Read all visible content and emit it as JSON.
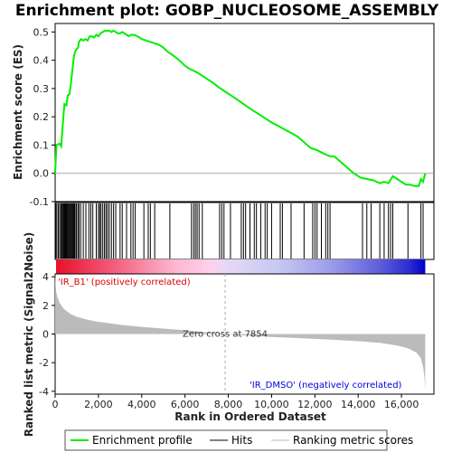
{
  "chart_data": {
    "type": "line",
    "title": "Enrichment plot: GOBP_NUCLEOSOME_ASSEMBLY",
    "xlabel": "Rank in Ordered Dataset",
    "ylabel_top": "Enrichment score (ES)",
    "ylabel_bottom": "Ranked list metric (Signal2Noise)",
    "x_range": [
      0,
      17500
    ],
    "es_ylim": [
      -0.1,
      0.53
    ],
    "metric_ylim": [
      -4.2,
      4.2
    ],
    "x_ticks": [
      "0",
      "2,000",
      "4,000",
      "6,000",
      "8,000",
      "10,000",
      "12,000",
      "14,000",
      "16,000"
    ],
    "x_tick_values": [
      0,
      2000,
      4000,
      6000,
      8000,
      10000,
      12000,
      14000,
      16000
    ],
    "es_ticks": [
      "-0.1",
      "0.0",
      "0.1",
      "0.2",
      "0.3",
      "0.4",
      "0.5"
    ],
    "es_tick_values": [
      -0.1,
      0.0,
      0.1,
      0.2,
      0.3,
      0.4,
      0.5
    ],
    "metric_ticks": [
      "-4",
      "-2",
      "0",
      "2",
      "4"
    ],
    "metric_tick_values": [
      -4,
      -2,
      0,
      2,
      4
    ],
    "zero_cross_label": "Zero cross at 7854",
    "zero_cross": 7854,
    "pos_label": "'IR_B1' (positively correlated)",
    "neg_label": "'IR_DMSO' (negatively correlated)",
    "legend": [
      "Enrichment profile",
      "Hits",
      "Ranking metric scores"
    ],
    "colors": {
      "profile": "#00ee00",
      "hits": "#000000",
      "metric_fill": "#bbbbbb",
      "pos_label": "#dd0000",
      "neg_label": "#0000dd",
      "zero_line": "#aaaaaa"
    },
    "es_profile": [
      [
        0,
        0.0
      ],
      [
        60,
        0.1
      ],
      [
        200,
        0.105
      ],
      [
        280,
        0.095
      ],
      [
        330,
        0.15
      ],
      [
        380,
        0.2
      ],
      [
        430,
        0.245
      ],
      [
        520,
        0.24
      ],
      [
        580,
        0.275
      ],
      [
        660,
        0.28
      ],
      [
        720,
        0.31
      ],
      [
        790,
        0.36
      ],
      [
        860,
        0.41
      ],
      [
        920,
        0.43
      ],
      [
        1000,
        0.44
      ],
      [
        1060,
        0.445
      ],
      [
        1100,
        0.465
      ],
      [
        1200,
        0.475
      ],
      [
        1300,
        0.47
      ],
      [
        1400,
        0.475
      ],
      [
        1500,
        0.47
      ],
      [
        1600,
        0.485
      ],
      [
        1700,
        0.485
      ],
      [
        1800,
        0.48
      ],
      [
        1900,
        0.49
      ],
      [
        2000,
        0.485
      ],
      [
        2100,
        0.495
      ],
      [
        2200,
        0.5
      ],
      [
        2300,
        0.505
      ],
      [
        2400,
        0.503
      ],
      [
        2500,
        0.505
      ],
      [
        2600,
        0.5
      ],
      [
        2700,
        0.505
      ],
      [
        2800,
        0.5
      ],
      [
        2900,
        0.495
      ],
      [
        3000,
        0.495
      ],
      [
        3100,
        0.5
      ],
      [
        3200,
        0.495
      ],
      [
        3300,
        0.49
      ],
      [
        3400,
        0.485
      ],
      [
        3500,
        0.49
      ],
      [
        3600,
        0.49
      ],
      [
        3700,
        0.488
      ],
      [
        3800,
        0.485
      ],
      [
        4000,
        0.475
      ],
      [
        4200,
        0.47
      ],
      [
        4400,
        0.465
      ],
      [
        4600,
        0.46
      ],
      [
        4800,
        0.455
      ],
      [
        5000,
        0.445
      ],
      [
        5200,
        0.43
      ],
      [
        5400,
        0.42
      ],
      [
        5600,
        0.408
      ],
      [
        5800,
        0.395
      ],
      [
        6000,
        0.38
      ],
      [
        6200,
        0.37
      ],
      [
        6400,
        0.363
      ],
      [
        6600,
        0.355
      ],
      [
        6800,
        0.345
      ],
      [
        7000,
        0.335
      ],
      [
        7300,
        0.32
      ],
      [
        7600,
        0.302
      ],
      [
        7900,
        0.287
      ],
      [
        8200,
        0.272
      ],
      [
        8500,
        0.256
      ],
      [
        8800,
        0.24
      ],
      [
        9100,
        0.224
      ],
      [
        9400,
        0.21
      ],
      [
        9700,
        0.195
      ],
      [
        10000,
        0.18
      ],
      [
        10300,
        0.168
      ],
      [
        10600,
        0.155
      ],
      [
        10900,
        0.143
      ],
      [
        11200,
        0.13
      ],
      [
        11500,
        0.11
      ],
      [
        11800,
        0.09
      ],
      [
        12100,
        0.082
      ],
      [
        12400,
        0.07
      ],
      [
        12700,
        0.06
      ],
      [
        12900,
        0.06
      ],
      [
        13200,
        0.04
      ],
      [
        13500,
        0.02
      ],
      [
        13800,
        0.0
      ],
      [
        14100,
        -0.015
      ],
      [
        14400,
        -0.02
      ],
      [
        14700,
        -0.025
      ],
      [
        15000,
        -0.035
      ],
      [
        15200,
        -0.03
      ],
      [
        15400,
        -0.035
      ],
      [
        15600,
        -0.01
      ],
      [
        15800,
        -0.02
      ],
      [
        16000,
        -0.03
      ],
      [
        16200,
        -0.04
      ],
      [
        16400,
        -0.04
      ],
      [
        16600,
        -0.045
      ],
      [
        16800,
        -0.045
      ],
      [
        16900,
        -0.02
      ],
      [
        17000,
        -0.03
      ],
      [
        17100,
        0.0
      ]
    ],
    "hits": [
      30,
      80,
      150,
      210,
      270,
      320,
      360,
      400,
      440,
      480,
      520,
      560,
      600,
      640,
      680,
      720,
      760,
      800,
      840,
      880,
      920,
      980,
      1050,
      1100,
      1180,
      1300,
      1420,
      1560,
      1650,
      1740,
      1900,
      2000,
      2060,
      2120,
      2200,
      2280,
      2350,
      2420,
      2500,
      2600,
      2700,
      2800,
      3000,
      3100,
      3300,
      3500,
      3600,
      3700,
      4100,
      4300,
      4400,
      4600,
      5300,
      6300,
      6400,
      6480,
      6560,
      6650,
      6800,
      7600,
      7700,
      7800,
      8100,
      8600,
      8700,
      8800,
      9000,
      9200,
      9300,
      9500,
      9700,
      9800,
      10000,
      10400,
      10500,
      10900,
      11500,
      11900,
      12000,
      12100,
      12300,
      12500,
      12600,
      12700,
      14200,
      14400,
      14600,
      15000,
      15200,
      15400,
      15500,
      15600,
      16300,
      16900,
      17000
    ],
    "metric_curve": [
      [
        0,
        4.2
      ],
      [
        40,
        3.0
      ],
      [
        100,
        2.6
      ],
      [
        200,
        2.2
      ],
      [
        400,
        1.75
      ],
      [
        700,
        1.4
      ],
      [
        1000,
        1.2
      ],
      [
        1500,
        1.0
      ],
      [
        2000,
        0.85
      ],
      [
        3000,
        0.65
      ],
      [
        4000,
        0.5
      ],
      [
        5000,
        0.38
      ],
      [
        6000,
        0.26
      ],
      [
        7000,
        0.12
      ],
      [
        7854,
        0.0
      ],
      [
        9000,
        -0.12
      ],
      [
        10000,
        -0.2
      ],
      [
        11000,
        -0.27
      ],
      [
        12000,
        -0.34
      ],
      [
        13000,
        -0.41
      ],
      [
        14000,
        -0.5
      ],
      [
        15000,
        -0.62
      ],
      [
        15800,
        -0.8
      ],
      [
        16300,
        -1.0
      ],
      [
        16700,
        -1.3
      ],
      [
        16900,
        -1.7
      ],
      [
        17000,
        -2.3
      ],
      [
        17060,
        -3.0
      ],
      [
        17100,
        -3.9
      ],
      [
        17100,
        0
      ]
    ]
  }
}
